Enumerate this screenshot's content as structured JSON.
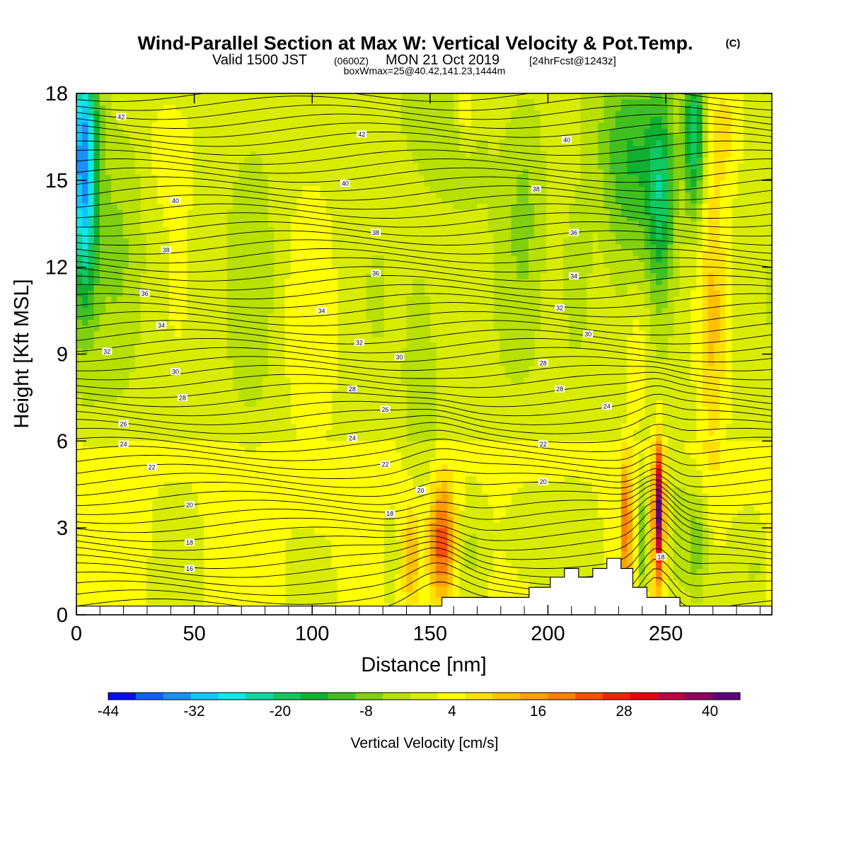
{
  "chart_data": {
    "type": "heatmap",
    "title": "Wind-Parallel Section at Max W: Vertical Velocity & Pot.Temp.",
    "title_mark": "(C)",
    "subtitle_parts": {
      "valid": "Valid 1500 JST",
      "utc": "(0600Z)",
      "date": "MON 21 Oct 2019",
      "forecast": "[24hrFcst@1243z]"
    },
    "box_info": "boxWmax=25@40.42,141.23,1444m",
    "xlabel": "Distance [nm]",
    "ylabel": "Height [Kft MSL]",
    "xlim": [
      0,
      295
    ],
    "ylim": [
      0,
      18
    ],
    "xticks": [
      0,
      50,
      100,
      150,
      200,
      250
    ],
    "yticks": [
      0,
      3,
      6,
      9,
      12,
      15,
      18
    ],
    "grid": false,
    "colorbar": {
      "label": "Vertical Velocity [cm/s]",
      "tick_labels": [
        "-44",
        "-32",
        "-20",
        "-8",
        "4",
        "16",
        "28",
        "40"
      ],
      "colors": [
        "#0a0aff",
        "#1060ff",
        "#1890ff",
        "#10c8ff",
        "#10e8e8",
        "#10d8a0",
        "#10c860",
        "#10b030",
        "#40c020",
        "#80d010",
        "#b8e000",
        "#d8ec00",
        "#ffff00",
        "#ffe000",
        "#ffc000",
        "#ffa000",
        "#ff8000",
        "#ff5000",
        "#ff2000",
        "#e80010",
        "#c00040",
        "#900060",
        "#600080"
      ]
    },
    "contour_labels": [
      {
        "text": "42",
        "x": 19,
        "y": 17.2
      },
      {
        "text": "42",
        "x": 121,
        "y": 16.6
      },
      {
        "text": "40",
        "x": 208,
        "y": 16.4
      },
      {
        "text": "40",
        "x": 42,
        "y": 14.3
      },
      {
        "text": "40",
        "x": 114,
        "y": 14.9
      },
      {
        "text": "38",
        "x": 195,
        "y": 14.7
      },
      {
        "text": "38",
        "x": 38,
        "y": 12.6
      },
      {
        "text": "38",
        "x": 127,
        "y": 13.2
      },
      {
        "text": "36",
        "x": 211,
        "y": 13.2
      },
      {
        "text": "36",
        "x": 29,
        "y": 11.1
      },
      {
        "text": "36",
        "x": 127,
        "y": 11.8
      },
      {
        "text": "34",
        "x": 211,
        "y": 11.7
      },
      {
        "text": "34",
        "x": 36,
        "y": 10.0
      },
      {
        "text": "34",
        "x": 104,
        "y": 10.5
      },
      {
        "text": "32",
        "x": 205,
        "y": 10.6
      },
      {
        "text": "32",
        "x": 13,
        "y": 9.1
      },
      {
        "text": "32",
        "x": 120,
        "y": 9.4
      },
      {
        "text": "30",
        "x": 217,
        "y": 9.7
      },
      {
        "text": "30",
        "x": 137,
        "y": 8.9
      },
      {
        "text": "28",
        "x": 198,
        "y": 8.7
      },
      {
        "text": "30",
        "x": 42,
        "y": 8.4
      },
      {
        "text": "28",
        "x": 45,
        "y": 7.5
      },
      {
        "text": "28",
        "x": 117,
        "y": 7.8
      },
      {
        "text": "28",
        "x": 205,
        "y": 7.8
      },
      {
        "text": "26",
        "x": 20,
        "y": 6.6
      },
      {
        "text": "26",
        "x": 131,
        "y": 7.1
      },
      {
        "text": "24",
        "x": 225,
        "y": 7.2
      },
      {
        "text": "24",
        "x": 20,
        "y": 5.9
      },
      {
        "text": "24",
        "x": 117,
        "y": 6.1
      },
      {
        "text": "22",
        "x": 198,
        "y": 5.9
      },
      {
        "text": "22",
        "x": 32,
        "y": 5.1
      },
      {
        "text": "22",
        "x": 131,
        "y": 5.2
      },
      {
        "text": "20",
        "x": 146,
        "y": 4.3
      },
      {
        "text": "20",
        "x": 198,
        "y": 4.6
      },
      {
        "text": "20",
        "x": 48,
        "y": 3.8
      },
      {
        "text": "18",
        "x": 133,
        "y": 3.5
      },
      {
        "text": "18",
        "x": 48,
        "y": 2.5
      },
      {
        "text": "16",
        "x": 48,
        "y": 1.6
      },
      {
        "text": "18",
        "x": 248,
        "y": 2.0
      }
    ],
    "w_features": [
      {
        "x": 3,
        "y": 14.5,
        "sx": 4,
        "sy": 3,
        "w": -28
      },
      {
        "x": 3,
        "y": 17.0,
        "sx": 5,
        "sy": 2,
        "w": -14
      },
      {
        "x": 18,
        "y": 13.0,
        "sx": 8,
        "sy": 3,
        "w": -5
      },
      {
        "x": 40,
        "y": 16.2,
        "sx": 8,
        "sy": 1.5,
        "w": 4
      },
      {
        "x": 75,
        "y": 12.0,
        "sx": 6,
        "sy": 3,
        "w": -4
      },
      {
        "x": 100,
        "y": 9.0,
        "sx": 8,
        "sy": 4,
        "w": 3
      },
      {
        "x": 160,
        "y": 16.0,
        "sx": 10,
        "sy": 2,
        "w": -5
      },
      {
        "x": 143,
        "y": 17.5,
        "sx": 4,
        "sy": 1,
        "w": -4
      },
      {
        "x": 165,
        "y": 17.5,
        "sx": 3,
        "sy": 1,
        "w": 8
      },
      {
        "x": 147,
        "y": 8.0,
        "sx": 5,
        "sy": 3,
        "w": -6
      },
      {
        "x": 133,
        "y": 1.8,
        "sx": 3,
        "sy": 1.2,
        "w": -5
      },
      {
        "x": 142,
        "y": 2.0,
        "sx": 2.5,
        "sy": 1.3,
        "w": 12
      },
      {
        "x": 155,
        "y": 2.5,
        "sx": 4,
        "sy": 1.5,
        "w": 24
      },
      {
        "x": 168,
        "y": 2.2,
        "sx": 5,
        "sy": 1.2,
        "w": -5
      },
      {
        "x": 190,
        "y": 2.5,
        "sx": 8,
        "sy": 1.2,
        "w": -4
      },
      {
        "x": 190,
        "y": 14.0,
        "sx": 6,
        "sy": 3,
        "w": -6
      },
      {
        "x": 212,
        "y": 11.5,
        "sx": 4,
        "sy": 2,
        "w": -8
      },
      {
        "x": 235,
        "y": 16.0,
        "sx": 10,
        "sy": 2.5,
        "w": -14
      },
      {
        "x": 248,
        "y": 14.5,
        "sx": 4,
        "sy": 2.5,
        "w": -16
      },
      {
        "x": 262,
        "y": 16.5,
        "sx": 3,
        "sy": 2,
        "w": -22
      },
      {
        "x": 270,
        "y": 10.0,
        "sx": 4,
        "sy": 4,
        "w": 9
      },
      {
        "x": 275,
        "y": 17.0,
        "sx": 5,
        "sy": 1.5,
        "w": 7
      },
      {
        "x": 238,
        "y": 9.0,
        "sx": 4,
        "sy": 2,
        "w": 6
      },
      {
        "x": 233,
        "y": 3.2,
        "sx": 1.6,
        "sy": 1.5,
        "w": 20
      },
      {
        "x": 240,
        "y": 2.5,
        "sx": 1.5,
        "sy": 1.5,
        "w": -14
      },
      {
        "x": 247,
        "y": 3.6,
        "sx": 1.5,
        "sy": 1.6,
        "w": 40
      },
      {
        "x": 255,
        "y": 2.8,
        "sx": 3,
        "sy": 1.5,
        "w": -8
      },
      {
        "x": 263,
        "y": 2.5,
        "sx": 3,
        "sy": 1.3,
        "w": -10
      },
      {
        "x": 288,
        "y": 1.5,
        "sx": 4,
        "sy": 1.2,
        "w": -6
      }
    ],
    "terrain": [
      [
        0,
        0.3
      ],
      [
        155,
        0.3
      ],
      [
        155,
        0.6
      ],
      [
        192,
        0.6
      ],
      [
        192,
        0.95
      ],
      [
        201,
        0.95
      ],
      [
        201,
        1.3
      ],
      [
        207,
        1.3
      ],
      [
        207,
        1.6
      ],
      [
        213,
        1.6
      ],
      [
        213,
        1.3
      ],
      [
        219,
        1.3
      ],
      [
        219,
        1.6
      ],
      [
        225,
        1.6
      ],
      [
        225,
        1.95
      ],
      [
        231,
        1.95
      ],
      [
        231,
        1.6
      ],
      [
        236,
        1.6
      ],
      [
        236,
        0.95
      ],
      [
        242,
        0.95
      ],
      [
        242,
        0.6
      ],
      [
        256,
        0.6
      ],
      [
        256,
        0.3
      ],
      [
        295,
        0.3
      ]
    ]
  }
}
